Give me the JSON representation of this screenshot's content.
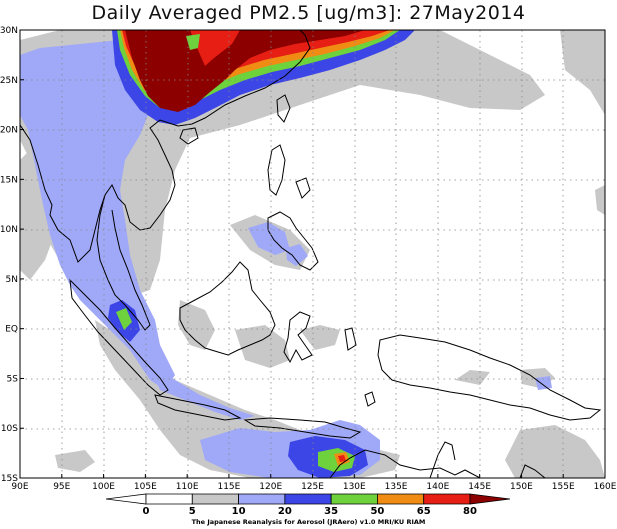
{
  "title": "Daily Averaged PM2.5 [ug/m3]: 27May2014",
  "map": {
    "lon_labels": [
      "90E",
      "95E",
      "100E",
      "105E",
      "110E",
      "115E",
      "120E",
      "125E",
      "130E",
      "135E",
      "140E",
      "145E",
      "150E",
      "155E",
      "160E"
    ],
    "lat_labels": [
      "30N",
      "25N",
      "20N",
      "15N",
      "10N",
      "5N",
      "EQ",
      "5S",
      "10S",
      "15S"
    ],
    "lon_range": [
      90,
      160
    ],
    "lat_range": [
      -15,
      30
    ],
    "grid": "dotted"
  },
  "colorbar": {
    "levels": [
      "0",
      "5",
      "10",
      "20",
      "35",
      "50",
      "65",
      "80"
    ],
    "colors": [
      "#ffffff",
      "#ffffff",
      "#c8c8c8",
      "#a0a8f8",
      "#3c46e6",
      "#6ed23c",
      "#f08c14",
      "#e61e14",
      "#8c0000"
    ]
  },
  "credit": "The Japanese Reanalysis for Aerosol (JRAero) v1.0 MRI/KU RIAM"
}
